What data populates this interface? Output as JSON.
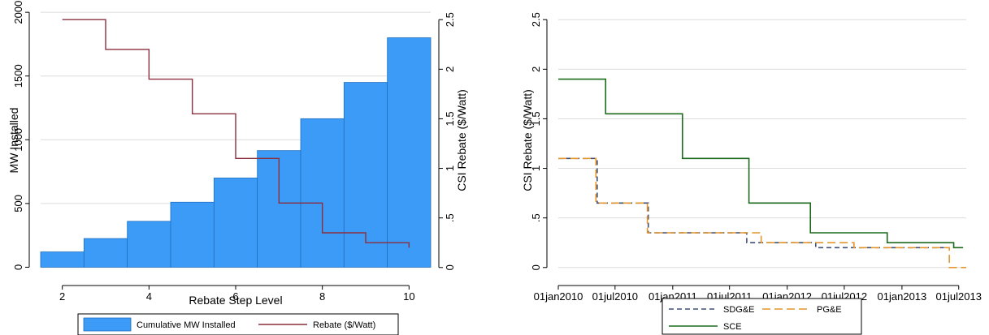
{
  "chart_data": [
    {
      "type": "bar",
      "xlabel": "Rebate Step Level",
      "ylabel": "MW Installed",
      "y2label": "CSI Rebate ($/Watt)",
      "xlim": [
        1.5,
        10.5
      ],
      "ylim": [
        -80,
        2020
      ],
      "y2lim": [
        -0.1,
        2.6
      ],
      "xticks": [
        "2",
        "4",
        "6",
        "8",
        "10"
      ],
      "yticks": [
        "0",
        "500",
        "1000",
        "1500",
        "2000"
      ],
      "y2ticks": [
        "0",
        ".5",
        "1",
        "1.5",
        "2",
        "2.5"
      ],
      "grid": true,
      "legend_position": "bottom",
      "categories": [
        2,
        3,
        4,
        5,
        6,
        7,
        8,
        9,
        10
      ],
      "series": [
        {
          "name": "Cumulative MW Installed",
          "kind": "bar",
          "axis": "left",
          "color": "#3b9bf7",
          "values": [
            120,
            225,
            360,
            510,
            700,
            915,
            1165,
            1450,
            1800
          ]
        },
        {
          "name": "Rebate ($/Watt)",
          "kind": "step-line",
          "axis": "right",
          "color": "#8b2f3e",
          "x": [
            2,
            3,
            3,
            4,
            4,
            5,
            5,
            6,
            6,
            7,
            7,
            8,
            8,
            9,
            9,
            10,
            10
          ],
          "values": [
            2.5,
            2.5,
            2.2,
            2.2,
            1.9,
            1.9,
            1.55,
            1.55,
            1.1,
            1.1,
            0.65,
            0.65,
            0.35,
            0.35,
            0.25,
            0.25,
            0.2
          ]
        }
      ]
    },
    {
      "type": "line",
      "ylabel": "CSI Rebate ($/Watt)",
      "xlim": [
        "2010-01-01",
        "2013-07-25"
      ],
      "ylim": [
        -0.1,
        2.6
      ],
      "xticks": [
        "01jan2010",
        "01jul2010",
        "01jan2011",
        "01jul2011",
        "01jan2012",
        "01jul2012",
        "01jan2013",
        "01jul2013"
      ],
      "yticks": [
        "0",
        ".5",
        "1",
        "1.5",
        "2",
        "2.5"
      ],
      "grid": true,
      "legend_position": "bottom",
      "series": [
        {
          "name": "SDG&E",
          "color": "#3e4f77",
          "dash": "dash",
          "x": [
            "2010-01-01",
            "2010-05-05",
            "2010-05-05",
            "2010-10-15",
            "2010-10-15",
            "2011-08-25",
            "2011-08-25",
            "2012-04-01",
            "2012-04-01",
            "2013-05-15"
          ],
          "values": [
            1.1,
            1.1,
            0.65,
            0.65,
            0.35,
            0.35,
            0.25,
            0.25,
            0.2,
            0.2
          ]
        },
        {
          "name": "PG&E",
          "color": "#e3962e",
          "dash": "longdash",
          "x": [
            "2010-01-01",
            "2010-05-01",
            "2010-05-01",
            "2010-10-12",
            "2010-10-12",
            "2011-10-10",
            "2011-10-10",
            "2012-08-01",
            "2012-08-01",
            "2013-06-01",
            "2013-06-01",
            "2013-07-25"
          ],
          "values": [
            1.1,
            1.1,
            0.65,
            0.65,
            0.35,
            0.35,
            0.25,
            0.25,
            0.2,
            0.2,
            0.0,
            0.0
          ]
        },
        {
          "name": "SCE",
          "color": "#1c6b1c",
          "dash": "solid",
          "x": [
            "2010-01-01",
            "2010-06-01",
            "2010-06-01",
            "2011-02-01",
            "2011-02-01",
            "2011-09-01",
            "2011-09-01",
            "2012-03-15",
            "2012-03-15",
            "2012-11-15",
            "2012-11-15",
            "2013-06-15",
            "2013-06-15",
            "2013-07-15"
          ],
          "values": [
            1.9,
            1.9,
            1.55,
            1.55,
            1.1,
            1.1,
            0.65,
            0.65,
            0.35,
            0.35,
            0.25,
            0.25,
            0.2,
            0.2
          ]
        }
      ]
    }
  ]
}
